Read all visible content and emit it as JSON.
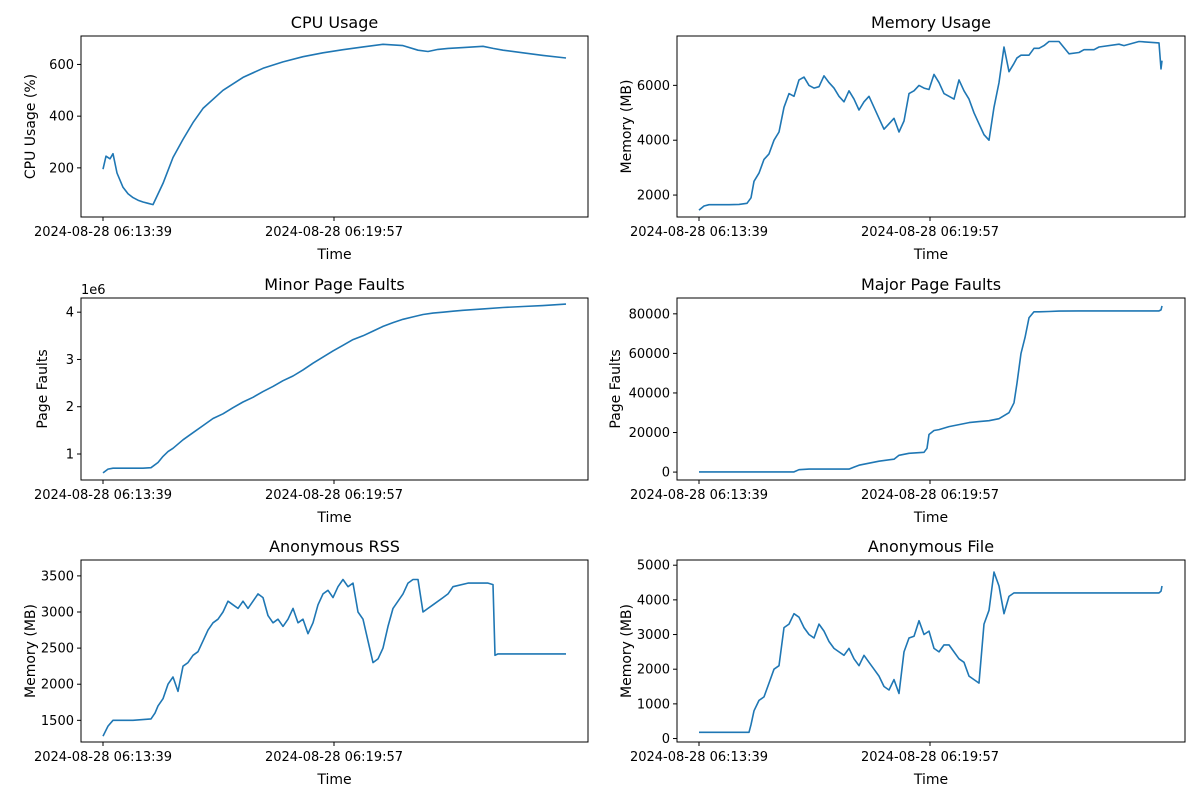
{
  "chart_data": [
    {
      "id": "cpu",
      "type": "line",
      "title": "CPU Usage",
      "xlabel": "Time",
      "ylabel": "CPU Usage (%)",
      "offset_text": "",
      "color": "#1f77b4",
      "x_ticks": [
        "2024-08-28 06:13:39",
        "2024-08-28 06:19:57"
      ],
      "y_ticks": [
        200,
        400,
        600
      ],
      "ylim": [
        10,
        710
      ],
      "series": [
        {
          "x": [
            0,
            3,
            7,
            10,
            14,
            20,
            25,
            30,
            35,
            40,
            45,
            50,
            60,
            70,
            80,
            90,
            100,
            120,
            140,
            160,
            180,
            200,
            220,
            240,
            260,
            280,
            300,
            315,
            325,
            335,
            345,
            360,
            380,
            390,
            400,
            420,
            440,
            463
          ],
          "y": [
            195,
            245,
            235,
            255,
            180,
            125,
            100,
            85,
            75,
            68,
            63,
            58,
            140,
            240,
            310,
            375,
            430,
            500,
            550,
            585,
            610,
            630,
            645,
            657,
            668,
            678,
            673,
            655,
            650,
            658,
            662,
            665,
            670,
            662,
            655,
            645,
            635,
            625
          ]
        }
      ]
    },
    {
      "id": "mem",
      "type": "line",
      "title": "Memory Usage",
      "xlabel": "Time",
      "ylabel": "Memory (MB)",
      "offset_text": "",
      "color": "#1f77b4",
      "x_ticks": [
        "2024-08-28 06:13:39",
        "2024-08-28 06:19:57"
      ],
      "y_ticks": [
        2000,
        4000,
        6000
      ],
      "ylim": [
        1200,
        7800
      ],
      "series": [
        {
          "x": [
            0,
            5,
            10,
            20,
            30,
            40,
            48,
            52,
            55,
            60,
            65,
            70,
            75,
            80,
            85,
            90,
            95,
            100,
            105,
            110,
            115,
            120,
            125,
            130,
            135,
            140,
            145,
            150,
            155,
            160,
            165,
            170,
            175,
            180,
            185,
            190,
            195,
            200,
            205,
            210,
            215,
            220,
            225,
            230,
            235,
            240,
            245,
            250,
            255,
            260,
            265,
            270,
            275,
            280,
            285,
            290,
            295,
            300,
            305,
            310,
            315,
            318,
            322,
            326,
            330,
            335,
            340,
            345,
            350,
            360,
            370,
            380,
            385,
            395,
            400,
            420,
            425,
            440,
            460,
            462,
            463
          ],
          "y": [
            1450,
            1600,
            1650,
            1650,
            1650,
            1660,
            1700,
            1900,
            2500,
            2800,
            3300,
            3500,
            4000,
            4300,
            5200,
            5700,
            5600,
            6200,
            6300,
            6000,
            5900,
            5950,
            6350,
            6100,
            5900,
            5600,
            5400,
            5800,
            5500,
            5100,
            5400,
            5600,
            5200,
            4800,
            4400,
            4600,
            4800,
            4300,
            4700,
            5700,
            5800,
            6000,
            5900,
            5850,
            6400,
            6100,
            5700,
            5600,
            5500,
            6200,
            5800,
            5500,
            5000,
            4600,
            4200,
            4000,
            5200,
            6100,
            7400,
            6500,
            6800,
            7000,
            7100,
            7100,
            7100,
            7350,
            7350,
            7450,
            7600,
            7600,
            7150,
            7200,
            7300,
            7300,
            7400,
            7500,
            7450,
            7600,
            7550,
            6600,
            6900
          ]
        }
      ]
    },
    {
      "id": "minor",
      "type": "line",
      "title": "Minor Page Faults",
      "xlabel": "Time",
      "ylabel": "Page Faults",
      "offset_text": "1e6",
      "color": "#1f77b4",
      "x_ticks": [
        "2024-08-28 06:13:39",
        "2024-08-28 06:19:57"
      ],
      "y_ticks": [
        1,
        2,
        3,
        4
      ],
      "ylim": [
        0.45,
        4.3
      ],
      "series": [
        {
          "x": [
            0,
            5,
            10,
            20,
            40,
            48,
            55,
            60,
            65,
            70,
            80,
            90,
            100,
            110,
            120,
            130,
            140,
            150,
            160,
            170,
            180,
            190,
            200,
            210,
            220,
            230,
            240,
            250,
            260,
            270,
            280,
            290,
            300,
            310,
            320,
            330,
            340,
            350,
            360,
            380,
            400,
            420,
            440,
            463
          ],
          "y": [
            0.6,
            0.68,
            0.7,
            0.7,
            0.7,
            0.71,
            0.82,
            0.95,
            1.05,
            1.12,
            1.3,
            1.45,
            1.6,
            1.75,
            1.85,
            1.98,
            2.1,
            2.2,
            2.32,
            2.43,
            2.55,
            2.65,
            2.78,
            2.92,
            3.05,
            3.18,
            3.3,
            3.42,
            3.5,
            3.6,
            3.7,
            3.78,
            3.85,
            3.9,
            3.95,
            3.98,
            4.0,
            4.02,
            4.04,
            4.07,
            4.1,
            4.12,
            4.14,
            4.17
          ]
        }
      ]
    },
    {
      "id": "major",
      "type": "line",
      "title": "Major Page Faults",
      "xlabel": "Time",
      "ylabel": "Page Faults",
      "offset_text": "",
      "color": "#1f77b4",
      "x_ticks": [
        "2024-08-28 06:13:39",
        "2024-08-28 06:19:57"
      ],
      "y_ticks": [
        0,
        20000,
        40000,
        60000,
        80000
      ],
      "ylim": [
        -4000,
        88000
      ],
      "series": [
        {
          "x": [
            0,
            40,
            95,
            100,
            110,
            150,
            155,
            160,
            170,
            180,
            195,
            200,
            210,
            225,
            228,
            230,
            235,
            240,
            250,
            260,
            270,
            280,
            290,
            300,
            310,
            315,
            318,
            322,
            326,
            330,
            335,
            340,
            350,
            360,
            380,
            400,
            420,
            440,
            460,
            462,
            463
          ],
          "y": [
            100,
            100,
            100,
            1200,
            1500,
            1500,
            2500,
            3500,
            4500,
            5500,
            6500,
            8500,
            9500,
            10000,
            12000,
            19000,
            21000,
            21500,
            23000,
            24000,
            25000,
            25500,
            26000,
            27000,
            30000,
            35000,
            45000,
            60000,
            68000,
            78000,
            81000,
            81000,
            81200,
            81400,
            81500,
            81500,
            81500,
            81500,
            81500,
            82000,
            84000
          ]
        }
      ]
    },
    {
      "id": "anon_rss",
      "type": "line",
      "title": "Anonymous RSS",
      "xlabel": "Time",
      "ylabel": "Memory (MB)",
      "offset_text": "",
      "color": "#1f77b4",
      "x_ticks": [
        "2024-08-28 06:13:39",
        "2024-08-28 06:19:57"
      ],
      "y_ticks": [
        1500,
        2000,
        2500,
        3000,
        3500
      ],
      "ylim": [
        1200,
        3720
      ],
      "series": [
        {
          "x": [
            0,
            5,
            10,
            30,
            48,
            52,
            55,
            60,
            65,
            70,
            75,
            80,
            85,
            90,
            95,
            100,
            105,
            110,
            115,
            120,
            125,
            130,
            135,
            140,
            145,
            150,
            155,
            160,
            165,
            170,
            175,
            180,
            185,
            190,
            195,
            200,
            205,
            210,
            215,
            220,
            225,
            230,
            235,
            240,
            245,
            250,
            255,
            260,
            265,
            270,
            275,
            280,
            285,
            290,
            295,
            300,
            305,
            310,
            315,
            320,
            325,
            330,
            340,
            345,
            350,
            365,
            375,
            385,
            390,
            392,
            395,
            400,
            405,
            410,
            420,
            440,
            460,
            462,
            463
          ],
          "y": [
            1280,
            1420,
            1500,
            1500,
            1520,
            1600,
            1700,
            1800,
            2000,
            2100,
            1900,
            2250,
            2300,
            2400,
            2450,
            2600,
            2750,
            2850,
            2900,
            3000,
            3150,
            3100,
            3050,
            3150,
            3050,
            3150,
            3250,
            3200,
            2950,
            2850,
            2900,
            2800,
            2900,
            3050,
            2850,
            2900,
            2700,
            2850,
            3100,
            3250,
            3300,
            3200,
            3350,
            3450,
            3350,
            3400,
            3000,
            2900,
            2600,
            2300,
            2350,
            2500,
            2800,
            3050,
            3150,
            3250,
            3400,
            3450,
            3450,
            3000,
            3050,
            3100,
            3200,
            3250,
            3350,
            3400,
            3400,
            3400,
            3380,
            2400,
            2420,
            2420,
            2420,
            2420,
            2420,
            2420,
            2420,
            2420,
            2420
          ]
        }
      ]
    },
    {
      "id": "anon_file",
      "type": "line",
      "title": "Anonymous File",
      "xlabel": "Time",
      "ylabel": "Memory (MB)",
      "offset_text": "",
      "color": "#1f77b4",
      "x_ticks": [
        "2024-08-28 06:13:39",
        "2024-08-28 06:19:57"
      ],
      "y_ticks": [
        0,
        1000,
        2000,
        3000,
        4000,
        5000
      ],
      "ylim": [
        -100,
        5150
      ],
      "series": [
        {
          "x": [
            0,
            30,
            50,
            52,
            55,
            60,
            65,
            70,
            75,
            80,
            85,
            90,
            95,
            100,
            105,
            110,
            115,
            120,
            125,
            130,
            135,
            140,
            145,
            150,
            155,
            160,
            165,
            170,
            175,
            180,
            185,
            190,
            195,
            200,
            205,
            210,
            215,
            220,
            225,
            230,
            235,
            240,
            245,
            250,
            255,
            260,
            265,
            270,
            275,
            280,
            285,
            290,
            295,
            300,
            305,
            310,
            315,
            318,
            322,
            326,
            330,
            340,
            360,
            380,
            400,
            420,
            440,
            460,
            462,
            463
          ],
          "y": [
            180,
            180,
            180,
            400,
            800,
            1100,
            1200,
            1600,
            2000,
            2100,
            3200,
            3300,
            3600,
            3500,
            3200,
            3000,
            2900,
            3300,
            3100,
            2800,
            2600,
            2500,
            2400,
            2600,
            2300,
            2100,
            2400,
            2200,
            2000,
            1800,
            1500,
            1400,
            1700,
            1300,
            2500,
            2900,
            2950,
            3400,
            3000,
            3100,
            2600,
            2500,
            2700,
            2700,
            2500,
            2300,
            2200,
            1800,
            1700,
            1600,
            3300,
            3700,
            4800,
            4400,
            3600,
            4100,
            4200,
            4200,
            4200,
            4200,
            4200,
            4200,
            4200,
            4200,
            4200,
            4200,
            4200,
            4200,
            4250,
            4400
          ]
        }
      ]
    }
  ]
}
